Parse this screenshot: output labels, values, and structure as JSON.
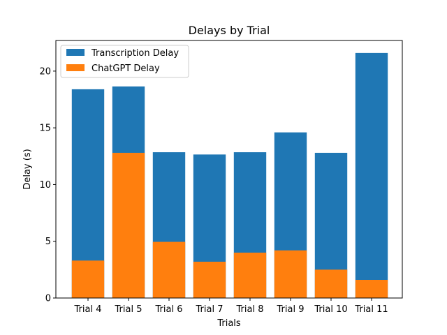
{
  "chart_data": {
    "type": "bar",
    "stacked": "overlay",
    "title": "Delays by Trial",
    "xlabel": "Trials",
    "ylabel": "Delay (s)",
    "categories": [
      "Trial 4",
      "Trial 5",
      "Trial 6",
      "Trial 7",
      "Trial 8",
      "Trial 9",
      "Trial 10",
      "Trial 11"
    ],
    "ylim": [
      0,
      22.7
    ],
    "yticks": [
      0,
      5,
      10,
      15,
      20
    ],
    "legend_position": "top-left",
    "series": [
      {
        "name": "Transcription Delay",
        "color": "#1f77b4",
        "values": [
          18.4,
          18.65,
          12.85,
          12.65,
          12.85,
          14.6,
          12.8,
          21.6
        ]
      },
      {
        "name": "ChatGPT Delay",
        "color": "#ff7f0e",
        "values": [
          3.3,
          12.8,
          4.95,
          3.2,
          4.0,
          4.2,
          2.5,
          1.6
        ]
      }
    ]
  }
}
